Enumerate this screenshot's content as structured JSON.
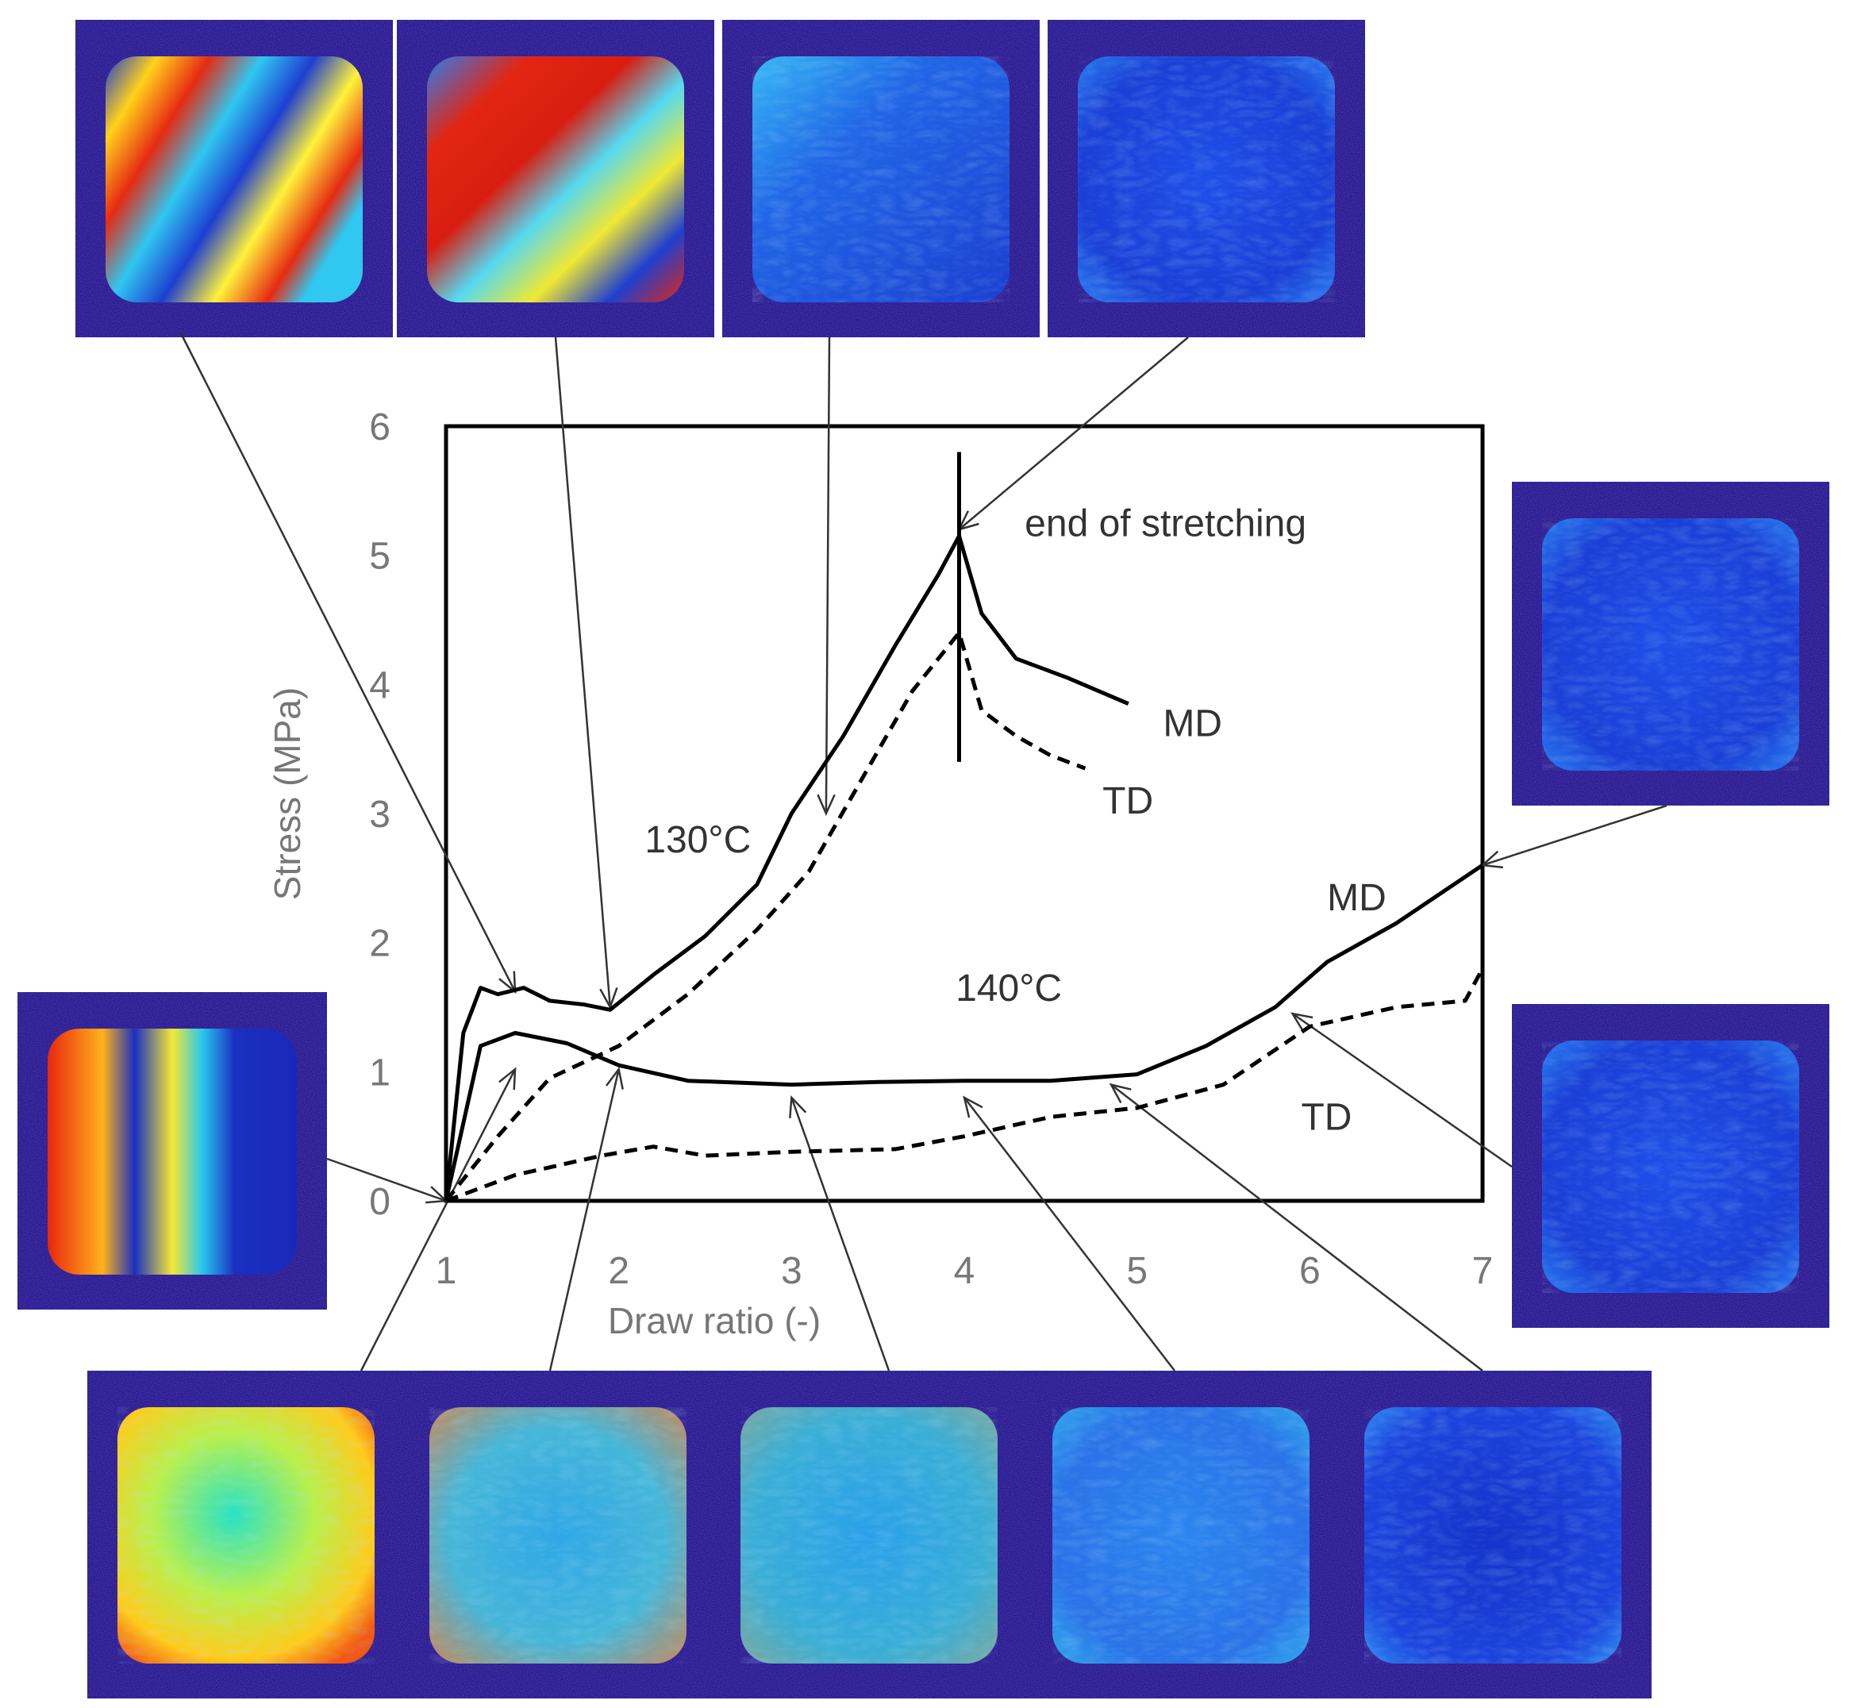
{
  "chart_data": {
    "type": "line",
    "xlabel": "Draw ratio (-)",
    "ylabel": "Stress (MPa)",
    "xlim": [
      1,
      7
    ],
    "ylim": [
      0,
      6
    ],
    "xticks": [
      "1",
      "2",
      "3",
      "4",
      "5",
      "6",
      "7"
    ],
    "yticks": [
      "0",
      "1",
      "2",
      "3",
      "4",
      "5",
      "6"
    ],
    "grid": false,
    "series": [
      {
        "name": "130°C MD",
        "style": "solid",
        "x": [
          1.0,
          1.1,
          1.2,
          1.3,
          1.45,
          1.6,
          1.8,
          1.95,
          2.2,
          2.5,
          2.8,
          3.0,
          3.3,
          3.6,
          3.85,
          3.97,
          4.1,
          4.3,
          4.6,
          4.95
        ],
        "y": [
          0.0,
          1.3,
          1.65,
          1.6,
          1.65,
          1.55,
          1.52,
          1.48,
          1.75,
          2.05,
          2.45,
          3.0,
          3.6,
          4.3,
          4.85,
          5.15,
          4.55,
          4.2,
          4.05,
          3.85
        ]
      },
      {
        "name": "130°C TD",
        "style": "dashed",
        "x": [
          1.0,
          1.3,
          1.6,
          2.0,
          2.4,
          2.8,
          3.1,
          3.4,
          3.7,
          3.97,
          4.1,
          4.3,
          4.5,
          4.7
        ],
        "y": [
          0.0,
          0.5,
          0.95,
          1.2,
          1.6,
          2.1,
          2.55,
          3.25,
          3.95,
          4.4,
          3.8,
          3.6,
          3.45,
          3.35
        ]
      },
      {
        "name": "140°C MD",
        "style": "solid",
        "x": [
          1.0,
          1.2,
          1.4,
          1.7,
          2.0,
          2.4,
          3.0,
          3.5,
          4.0,
          4.5,
          5.0,
          5.4,
          5.8,
          6.1,
          6.5,
          7.0
        ],
        "y": [
          0.0,
          1.2,
          1.3,
          1.22,
          1.05,
          0.93,
          0.9,
          0.92,
          0.93,
          0.93,
          0.98,
          1.2,
          1.5,
          1.85,
          2.15,
          2.6
        ]
      },
      {
        "name": "140°C TD",
        "style": "dashed",
        "x": [
          1.0,
          1.4,
          1.9,
          2.2,
          2.5,
          3.0,
          3.6,
          4.0,
          4.5,
          5.0,
          5.5,
          6.0,
          6.5,
          6.9,
          7.0
        ],
        "y": [
          0.0,
          0.2,
          0.35,
          0.42,
          0.35,
          0.38,
          0.4,
          0.5,
          0.65,
          0.72,
          0.9,
          1.35,
          1.5,
          1.55,
          1.8
        ]
      }
    ],
    "end_marker": {
      "x": 3.97,
      "y_from": 3.4,
      "y_to": 5.8
    },
    "annotations": [
      {
        "id": "end",
        "text": "end of stretching",
        "x": 4.35,
        "y": 5.15
      },
      {
        "id": "t130",
        "text": "130°C",
        "x": 2.15,
        "y": 2.7
      },
      {
        "id": "t140",
        "text": "140°C",
        "x": 3.95,
        "y": 1.55
      },
      {
        "id": "md130",
        "text": "MD",
        "x": 5.15,
        "y": 3.6
      },
      {
        "id": "td130",
        "text": "TD",
        "x": 4.8,
        "y": 3.0
      },
      {
        "id": "md140",
        "text": "MD",
        "x": 6.1,
        "y": 2.25
      },
      {
        "id": "td140",
        "text": "TD",
        "x": 5.95,
        "y": 0.55
      }
    ],
    "insets": [
      {
        "id": "top-1",
        "pattern": "fringe-strong",
        "points_to": [
          1.4,
          1.62
        ]
      },
      {
        "id": "top-2",
        "pattern": "fringe-red",
        "points_to": [
          1.95,
          1.5
        ]
      },
      {
        "id": "top-3",
        "pattern": "blue-gradient",
        "points_to": [
          3.2,
          3.0
        ]
      },
      {
        "id": "top-4",
        "pattern": "blue",
        "points_to": [
          3.97,
          5.2
        ]
      },
      {
        "id": "left-1",
        "pattern": "patchy",
        "points_to": [
          1.0,
          0.0
        ]
      },
      {
        "id": "right-1",
        "pattern": "blue",
        "points_to": [
          7.0,
          2.6
        ]
      },
      {
        "id": "right-2",
        "pattern": "blue",
        "points_to": [
          5.9,
          1.45
        ]
      },
      {
        "id": "bottom-1",
        "pattern": "yellow-green",
        "points_to": [
          1.4,
          1.02
        ]
      },
      {
        "id": "bottom-2",
        "pattern": "teal-speckle",
        "points_to": [
          2.0,
          1.02
        ]
      },
      {
        "id": "bottom-3",
        "pattern": "teal-speckle-2",
        "points_to": [
          3.0,
          0.8
        ]
      },
      {
        "id": "bottom-4",
        "pattern": "cyan-fiber",
        "points_to": [
          4.0,
          0.8
        ]
      },
      {
        "id": "bottom-5",
        "pattern": "deep-blue",
        "points_to": [
          4.85,
          0.9
        ]
      }
    ]
  }
}
